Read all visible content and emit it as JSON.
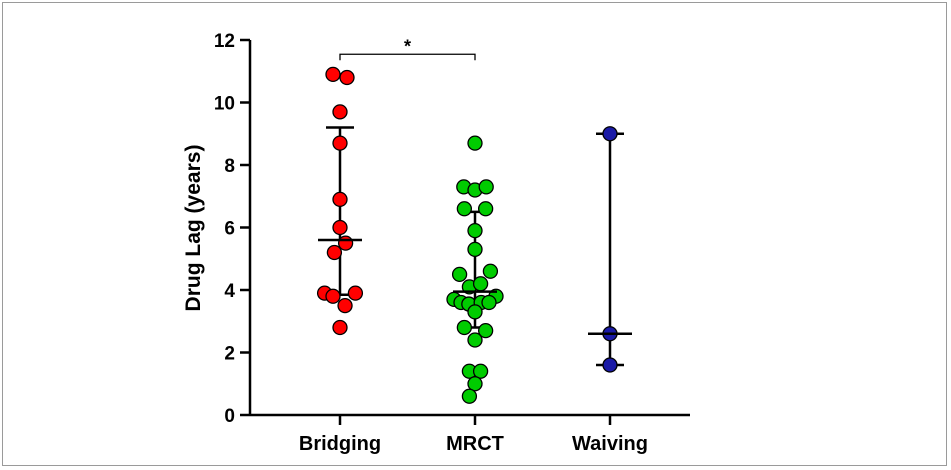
{
  "chart_data": {
    "type": "scatter",
    "xlabel": "",
    "ylabel": "Drug Lag (years)",
    "ylim": [
      0,
      12
    ],
    "yticks": [
      0,
      2,
      4,
      6,
      8,
      10,
      12
    ],
    "categories": [
      "Bridging",
      "MRCT",
      "Waiving"
    ],
    "grid": false,
    "series": [
      {
        "category": "Bridging",
        "color": "#ff0000",
        "points": [
          {
            "offset": -0.25,
            "y": 10.9
          },
          {
            "offset": 0.25,
            "y": 10.8
          },
          {
            "offset": 0.0,
            "y": 9.7
          },
          {
            "offset": 0.0,
            "y": 8.7
          },
          {
            "offset": 0.0,
            "y": 6.9
          },
          {
            "offset": 0.0,
            "y": 6.0
          },
          {
            "offset": 0.2,
            "y": 5.5
          },
          {
            "offset": -0.2,
            "y": 5.2
          },
          {
            "offset": -0.55,
            "y": 3.9
          },
          {
            "offset": 0.55,
            "y": 3.9
          },
          {
            "offset": -0.25,
            "y": 3.8
          },
          {
            "offset": 0.18,
            "y": 3.5
          },
          {
            "offset": 0.0,
            "y": 2.8
          }
        ],
        "median": 5.6,
        "q1": 3.85,
        "q3": 9.2
      },
      {
        "category": "MRCT",
        "color": "#00cc00",
        "points": [
          {
            "offset": 0.0,
            "y": 8.7
          },
          {
            "offset": -0.4,
            "y": 7.3
          },
          {
            "offset": 0.0,
            "y": 7.2
          },
          {
            "offset": 0.4,
            "y": 7.3
          },
          {
            "offset": -0.38,
            "y": 6.6
          },
          {
            "offset": 0.38,
            "y": 6.6
          },
          {
            "offset": 0.0,
            "y": 5.9
          },
          {
            "offset": 0.0,
            "y": 5.3
          },
          {
            "offset": -0.55,
            "y": 4.5
          },
          {
            "offset": 0.55,
            "y": 4.6
          },
          {
            "offset": -0.2,
            "y": 4.1
          },
          {
            "offset": 0.2,
            "y": 4.2
          },
          {
            "offset": 0.75,
            "y": 3.8
          },
          {
            "offset": -0.75,
            "y": 3.7
          },
          {
            "offset": -0.5,
            "y": 3.6
          },
          {
            "offset": -0.22,
            "y": 3.55
          },
          {
            "offset": 0.22,
            "y": 3.6
          },
          {
            "offset": 0.5,
            "y": 3.6
          },
          {
            "offset": 0.0,
            "y": 3.3
          },
          {
            "offset": -0.38,
            "y": 2.8
          },
          {
            "offset": 0.38,
            "y": 2.7
          },
          {
            "offset": 0.0,
            "y": 2.4
          },
          {
            "offset": -0.2,
            "y": 1.4
          },
          {
            "offset": 0.2,
            "y": 1.4
          },
          {
            "offset": 0.0,
            "y": 1.0
          },
          {
            "offset": -0.2,
            "y": 0.6
          }
        ],
        "median": 3.95,
        "q1": 2.8,
        "q3": 6.5
      },
      {
        "category": "Waiving",
        "color": "#1a1aa6",
        "points": [
          {
            "offset": 0.0,
            "y": 9.0
          },
          {
            "offset": 0.0,
            "y": 2.6
          },
          {
            "offset": 0.0,
            "y": 1.6
          }
        ],
        "median": 2.6,
        "q1": 1.6,
        "q3": 9.0
      }
    ],
    "annotations": [
      {
        "type": "significance",
        "from": "Bridging",
        "to": "MRCT",
        "y": 11.8,
        "label": "*"
      }
    ]
  }
}
